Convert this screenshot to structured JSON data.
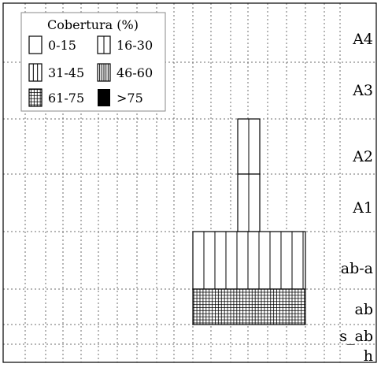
{
  "chart_data": {
    "type": "heatmap",
    "title": "",
    "legend": {
      "title": "Cobertura (%)",
      "position": "top-left",
      "entries": [
        {
          "label": "0-15",
          "pattern": "empty"
        },
        {
          "label": "16-30",
          "pattern": "lines-1"
        },
        {
          "label": "31-45",
          "pattern": "lines-2"
        },
        {
          "label": "46-60",
          "pattern": "lines-4"
        },
        {
          "label": "61-75",
          "pattern": "grid"
        },
        {
          "label": ">75",
          "pattern": "solid"
        }
      ]
    },
    "strata": [
      "A4",
      "A3",
      "A2",
      "A1",
      "ab-a",
      "ab",
      "s_ab",
      "h"
    ],
    "grid": true,
    "grid_style": "dashed",
    "cover": [
      {
        "stratum": "A2",
        "columns": [
          8
        ],
        "cover": "16-30"
      },
      {
        "stratum": "A1",
        "columns": [
          8
        ],
        "cover": "16-30"
      },
      {
        "stratum": "ab-a",
        "columns": [
          6,
          7,
          8,
          9
        ],
        "cover": "31-45"
      },
      {
        "stratum": "ab",
        "columns": [
          6,
          7,
          8,
          9
        ],
        "cover": "61-75"
      }
    ],
    "colors": {
      "ink": "#000000",
      "grid": "#6e6e6e"
    }
  }
}
